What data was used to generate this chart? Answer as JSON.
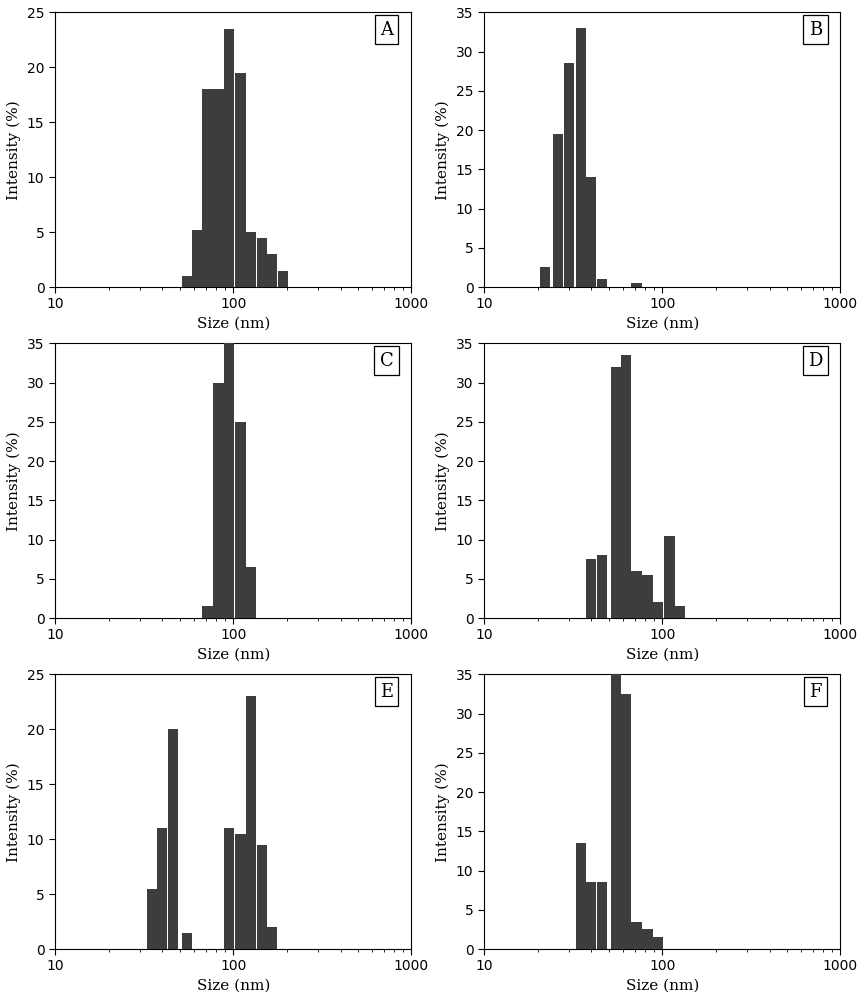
{
  "panels": [
    {
      "label": "A",
      "ylim": [
        0,
        25
      ],
      "yticks": [
        0,
        5,
        10,
        15,
        20,
        25
      ],
      "bars": [
        {
          "x": 55,
          "height": 1.0
        },
        {
          "x": 63,
          "height": 5.2
        },
        {
          "x": 72,
          "height": 18.0
        },
        {
          "x": 83,
          "height": 18.0
        },
        {
          "x": 95,
          "height": 23.5
        },
        {
          "x": 110,
          "height": 19.5
        },
        {
          "x": 126,
          "height": 5.0
        },
        {
          "x": 145,
          "height": 4.5
        },
        {
          "x": 166,
          "height": 3.0
        },
        {
          "x": 191,
          "height": 1.5
        }
      ]
    },
    {
      "label": "B",
      "ylim": [
        0,
        35
      ],
      "yticks": [
        0,
        5,
        10,
        15,
        20,
        25,
        30,
        35
      ],
      "bars": [
        {
          "x": 22,
          "height": 2.5
        },
        {
          "x": 26,
          "height": 19.5
        },
        {
          "x": 30,
          "height": 28.5
        },
        {
          "x": 35,
          "height": 33.0
        },
        {
          "x": 40,
          "height": 14.0
        },
        {
          "x": 46,
          "height": 1.0
        },
        {
          "x": 72,
          "height": 0.5
        }
      ]
    },
    {
      "label": "C",
      "ylim": [
        0,
        35
      ],
      "yticks": [
        0,
        5,
        10,
        15,
        20,
        25,
        30,
        35
      ],
      "bars": [
        {
          "x": 72,
          "height": 1.5
        },
        {
          "x": 83,
          "height": 30.0
        },
        {
          "x": 95,
          "height": 35.0
        },
        {
          "x": 110,
          "height": 25.0
        },
        {
          "x": 126,
          "height": 6.5
        }
      ]
    },
    {
      "label": "D",
      "ylim": [
        0,
        35
      ],
      "yticks": [
        0,
        5,
        10,
        15,
        20,
        25,
        30,
        35
      ],
      "bars": [
        {
          "x": 40,
          "height": 7.5
        },
        {
          "x": 46,
          "height": 8.0
        },
        {
          "x": 55,
          "height": 32.0
        },
        {
          "x": 63,
          "height": 33.5
        },
        {
          "x": 72,
          "height": 6.0
        },
        {
          "x": 83,
          "height": 5.5
        },
        {
          "x": 95,
          "height": 2.0
        },
        {
          "x": 110,
          "height": 10.5
        },
        {
          "x": 126,
          "height": 1.5
        }
      ]
    },
    {
      "label": "E",
      "ylim": [
        0,
        25
      ],
      "yticks": [
        0,
        5,
        10,
        15,
        20,
        25
      ],
      "bars": [
        {
          "x": 35,
          "height": 5.5
        },
        {
          "x": 40,
          "height": 11.0
        },
        {
          "x": 46,
          "height": 20.0
        },
        {
          "x": 55,
          "height": 1.5
        },
        {
          "x": 95,
          "height": 11.0
        },
        {
          "x": 110,
          "height": 10.5
        },
        {
          "x": 126,
          "height": 23.0
        },
        {
          "x": 145,
          "height": 9.5
        },
        {
          "x": 166,
          "height": 2.0
        }
      ]
    },
    {
      "label": "F",
      "ylim": [
        0,
        35
      ],
      "yticks": [
        0,
        5,
        10,
        15,
        20,
        25,
        30,
        35
      ],
      "bars": [
        {
          "x": 35,
          "height": 13.5
        },
        {
          "x": 40,
          "height": 8.5
        },
        {
          "x": 46,
          "height": 8.5
        },
        {
          "x": 55,
          "height": 35.0
        },
        {
          "x": 63,
          "height": 32.5
        },
        {
          "x": 72,
          "height": 3.5
        },
        {
          "x": 83,
          "height": 2.5
        },
        {
          "x": 95,
          "height": 1.5
        }
      ]
    }
  ],
  "bar_color": "#3d3d3d",
  "bar_hatch": "...",
  "xlim": [
    10,
    1000
  ],
  "xlabel": "Size (nm)",
  "ylabel": "Intensity (%)",
  "bg_color": "#ffffff",
  "log_bar_width": 0.058
}
